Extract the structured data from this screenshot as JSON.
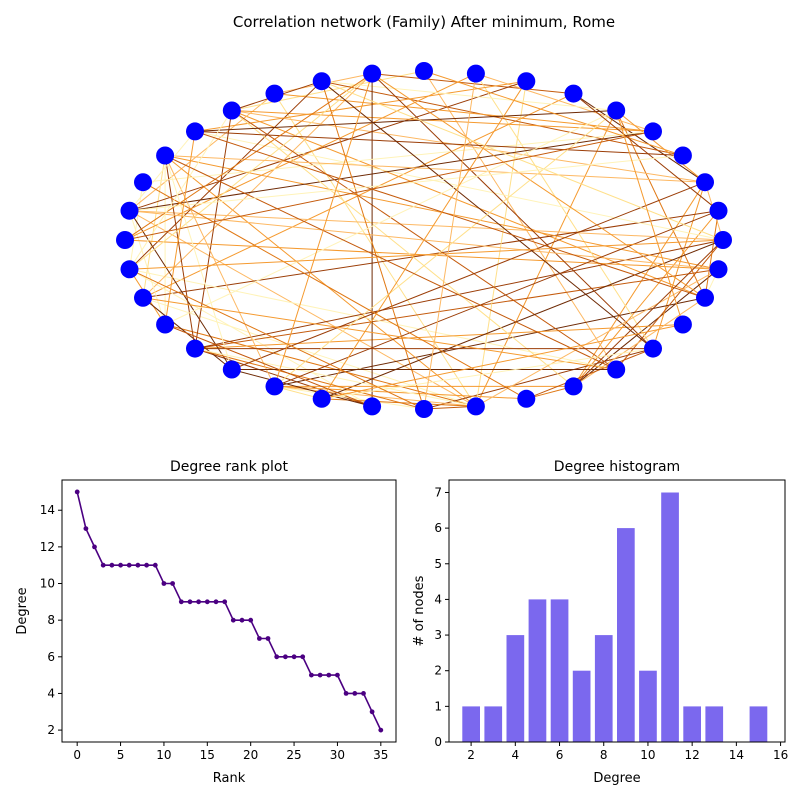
{
  "network": {
    "title": "Correlation network (Family) After minimum, Rome",
    "node_color": "#0000ff",
    "edge_palette": [
      "#fff3b8",
      "#ffe08a",
      "#fdb863",
      "#f59a2f",
      "#e07814",
      "#c45a0c",
      "#9b3d07",
      "#6e2a05"
    ]
  },
  "chart_data": [
    {
      "type": "line",
      "title": "Degree rank plot",
      "xlabel": "Rank",
      "ylabel": "Degree",
      "xlim": [
        -1.75,
        36.75
      ],
      "ylim": [
        1.35,
        15.65
      ],
      "xticks": [
        0,
        5,
        10,
        15,
        20,
        25,
        30,
        35
      ],
      "yticks": [
        2,
        4,
        6,
        8,
        10,
        12,
        14
      ],
      "color": "#4b0082",
      "x": [
        0,
        1,
        2,
        3,
        4,
        5,
        6,
        7,
        8,
        9,
        10,
        11,
        12,
        13,
        14,
        15,
        16,
        17,
        18,
        19,
        20,
        21,
        22,
        23,
        24,
        25,
        26,
        27,
        28,
        29,
        30,
        31,
        32,
        33,
        34,
        35
      ],
      "values": [
        15,
        13,
        12,
        11,
        11,
        11,
        11,
        11,
        11,
        11,
        10,
        10,
        9,
        9,
        9,
        9,
        9,
        9,
        8,
        8,
        8,
        7,
        7,
        6,
        6,
        6,
        6,
        5,
        5,
        5,
        5,
        4,
        4,
        4,
        3,
        2
      ]
    },
    {
      "type": "bar",
      "title": "Degree histogram",
      "xlabel": "Degree",
      "ylabel": "# of nodes",
      "xlim": [
        1.0,
        16.2
      ],
      "ylim": [
        0,
        7.35
      ],
      "xticks": [
        2,
        4,
        6,
        8,
        10,
        12,
        14,
        16
      ],
      "yticks": [
        0,
        1,
        2,
        3,
        4,
        5,
        6,
        7
      ],
      "color": "#7b68ee",
      "categories": [
        2,
        3,
        4,
        5,
        6,
        7,
        8,
        9,
        10,
        11,
        12,
        13,
        15
      ],
      "values": [
        1,
        1,
        3,
        4,
        4,
        2,
        3,
        6,
        2,
        7,
        1,
        1,
        1
      ]
    }
  ]
}
